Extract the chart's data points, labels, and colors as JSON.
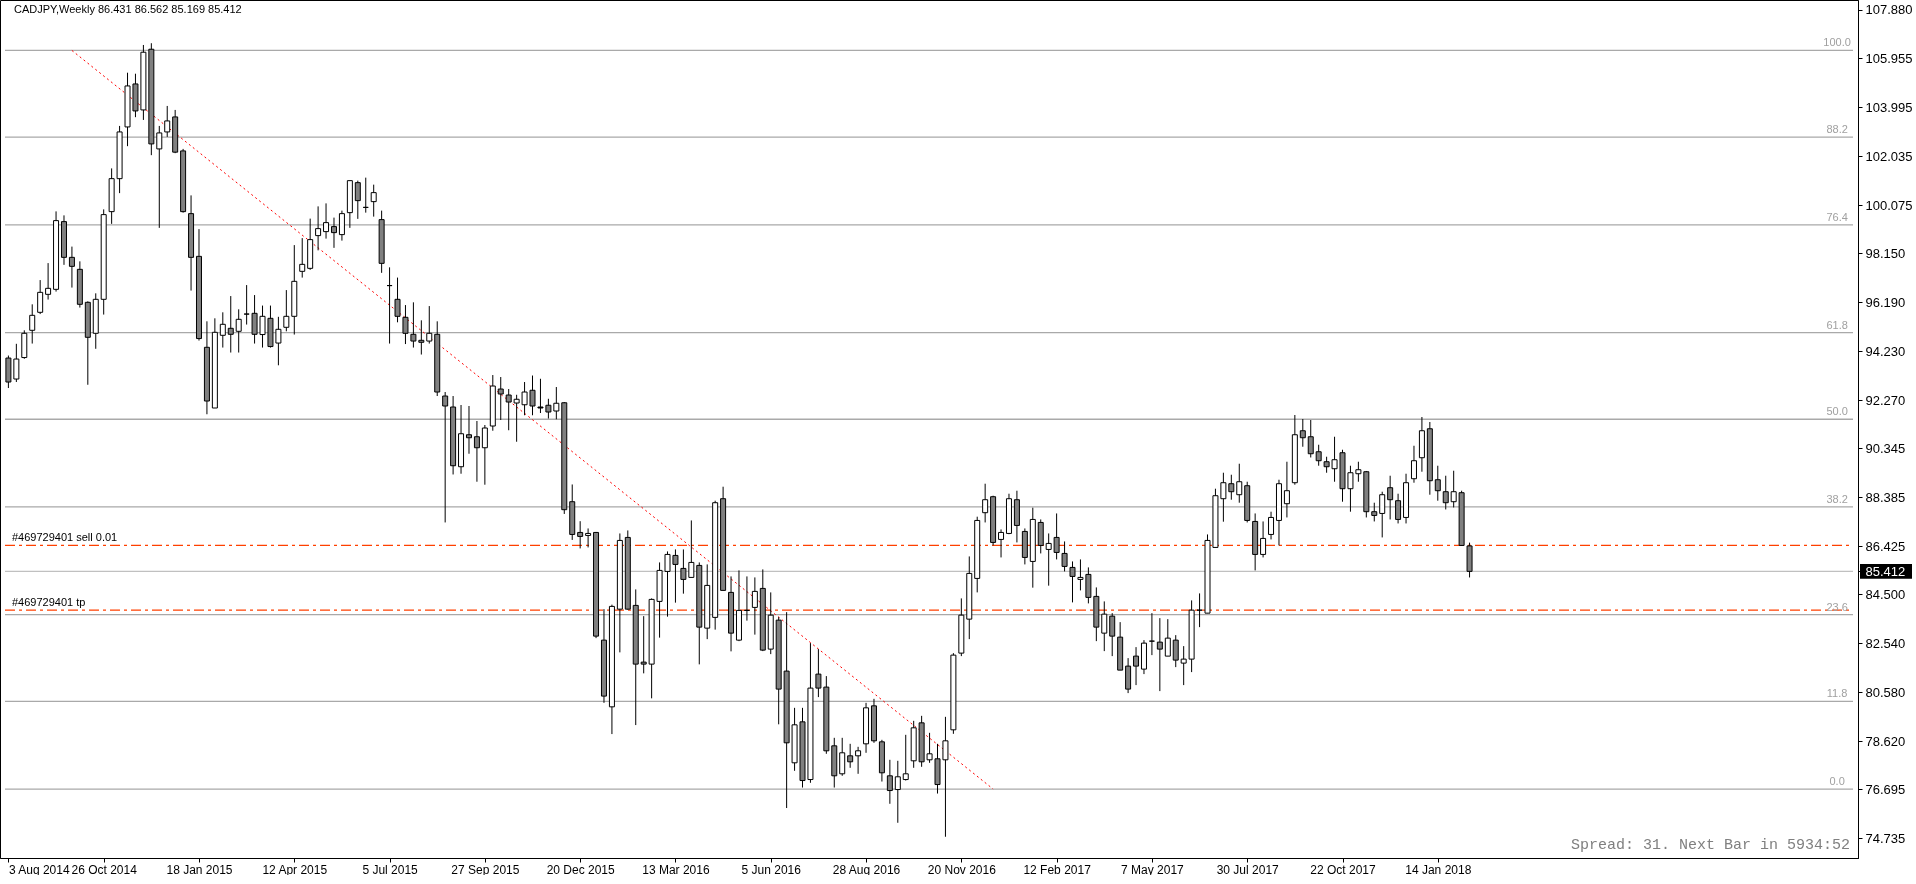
{
  "chart_data": {
    "type": "candlestick",
    "title": "CADJPY,Weekly 86.431 86.562 85.169 85.412",
    "x": [
      "2014-08-03",
      "2014-08-10",
      "2014-08-17",
      "2014-08-24",
      "2014-08-31",
      "2014-09-07",
      "2014-09-14",
      "2014-09-21",
      "2014-09-28",
      "2014-10-05",
      "2014-10-12",
      "2014-10-19",
      "2014-10-26",
      "2014-11-02",
      "2014-11-09",
      "2014-11-16",
      "2014-11-23",
      "2014-11-30",
      "2014-12-07",
      "2014-12-14",
      "2014-12-21",
      "2014-12-28",
      "2015-01-04",
      "2015-01-11",
      "2015-01-18",
      "2015-01-25",
      "2015-02-01",
      "2015-02-08",
      "2015-02-15",
      "2015-02-22",
      "2015-03-01",
      "2015-03-08",
      "2015-03-15",
      "2015-03-22",
      "2015-03-29",
      "2015-04-05",
      "2015-04-12",
      "2015-04-19",
      "2015-04-26",
      "2015-05-03",
      "2015-05-10",
      "2015-05-17",
      "2015-05-24",
      "2015-05-31",
      "2015-06-07",
      "2015-06-14",
      "2015-06-21",
      "2015-06-28",
      "2015-07-05",
      "2015-07-12",
      "2015-07-19",
      "2015-07-26",
      "2015-08-02",
      "2015-08-09",
      "2015-08-16",
      "2015-08-23",
      "2015-08-30",
      "2015-09-06",
      "2015-09-13",
      "2015-09-20",
      "2015-09-27",
      "2015-10-04",
      "2015-10-11",
      "2015-10-18",
      "2015-10-25",
      "2015-11-01",
      "2015-11-08",
      "2015-11-15",
      "2015-11-22",
      "2015-11-29",
      "2015-12-06",
      "2015-12-13",
      "2015-12-20",
      "2015-12-27",
      "2016-01-03",
      "2016-01-10",
      "2016-01-17",
      "2016-01-24",
      "2016-01-31",
      "2016-02-07",
      "2016-02-14",
      "2016-02-21",
      "2016-02-28",
      "2016-03-06",
      "2016-03-13",
      "2016-03-20",
      "2016-03-27",
      "2016-04-03",
      "2016-04-10",
      "2016-04-17",
      "2016-04-24",
      "2016-05-01",
      "2016-05-08",
      "2016-05-15",
      "2016-05-22",
      "2016-05-29",
      "2016-06-05",
      "2016-06-12",
      "2016-06-19",
      "2016-06-26",
      "2016-07-03",
      "2016-07-10",
      "2016-07-17",
      "2016-07-24",
      "2016-07-31",
      "2016-08-07",
      "2016-08-14",
      "2016-08-21",
      "2016-08-28",
      "2016-09-04",
      "2016-09-11",
      "2016-09-18",
      "2016-09-25",
      "2016-10-02",
      "2016-10-09",
      "2016-10-16",
      "2016-10-23",
      "2016-10-30",
      "2016-11-06",
      "2016-11-13",
      "2016-11-20",
      "2016-11-27",
      "2016-12-04",
      "2016-12-11",
      "2016-12-18",
      "2016-12-25",
      "2017-01-01",
      "2017-01-08",
      "2017-01-15",
      "2017-01-22",
      "2017-01-29",
      "2017-02-05",
      "2017-02-12",
      "2017-02-19",
      "2017-02-26",
      "2017-03-05",
      "2017-03-12",
      "2017-03-19",
      "2017-03-26",
      "2017-04-02",
      "2017-04-09",
      "2017-04-16",
      "2017-04-23",
      "2017-04-30",
      "2017-05-07",
      "2017-05-14",
      "2017-05-21",
      "2017-05-28",
      "2017-06-04",
      "2017-06-11",
      "2017-06-18",
      "2017-06-25",
      "2017-07-02",
      "2017-07-09",
      "2017-07-16",
      "2017-07-23",
      "2017-07-30",
      "2017-08-06",
      "2017-08-13",
      "2017-08-20",
      "2017-08-27",
      "2017-09-03",
      "2017-09-10",
      "2017-09-17",
      "2017-09-24",
      "2017-10-01",
      "2017-10-08",
      "2017-10-15",
      "2017-10-22",
      "2017-10-29",
      "2017-11-05",
      "2017-11-12",
      "2017-11-19",
      "2017-11-26",
      "2017-12-03",
      "2017-12-10",
      "2017-12-17",
      "2017-12-24",
      "2017-12-31",
      "2018-01-07",
      "2018-01-14",
      "2018-01-21",
      "2018-01-28",
      "2018-02-04",
      "2018-02-11"
    ],
    "ohlc": [
      [
        93.95,
        94.05,
        92.75,
        92.99
      ],
      [
        93.11,
        94.52,
        92.99,
        93.91
      ],
      [
        93.97,
        95.06,
        93.92,
        94.94
      ],
      [
        95.06,
        96.1,
        94.53,
        95.66
      ],
      [
        95.78,
        97.07,
        95.71,
        96.58
      ],
      [
        96.5,
        97.75,
        96.29,
        96.74
      ],
      [
        96.7,
        99.82,
        96.61,
        99.45
      ],
      [
        99.41,
        99.66,
        97.68,
        97.98
      ],
      [
        97.98,
        98.41,
        96.77,
        97.62
      ],
      [
        97.5,
        97.82,
        95.97,
        96.1
      ],
      [
        96.18,
        96.22,
        92.88,
        94.78
      ],
      [
        94.94,
        96.54,
        94.32,
        96.3
      ],
      [
        96.3,
        99.9,
        95.69,
        99.69
      ],
      [
        99.81,
        101.54,
        99.32,
        101.13
      ],
      [
        101.13,
        103.24,
        100.55,
        103.0
      ],
      [
        103.2,
        105.37,
        102.43,
        104.84
      ],
      [
        104.92,
        105.33,
        103.59,
        103.84
      ],
      [
        103.88,
        106.48,
        103.48,
        106.19
      ],
      [
        106.31,
        106.55,
        102.07,
        102.52
      ],
      [
        102.32,
        103.24,
        99.16,
        102.96
      ],
      [
        103.0,
        104.04,
        102.8,
        103.44
      ],
      [
        103.6,
        103.88,
        102.15,
        102.19
      ],
      [
        102.24,
        102.32,
        99.77,
        99.81
      ],
      [
        99.73,
        100.46,
        96.65,
        97.98
      ],
      [
        98.02,
        99.11,
        94.65,
        94.73
      ],
      [
        94.38,
        95.42,
        91.7,
        92.23
      ],
      [
        91.95,
        95.54,
        91.95,
        94.98
      ],
      [
        94.86,
        95.78,
        94.37,
        95.3
      ],
      [
        95.14,
        96.43,
        94.17,
        94.9
      ],
      [
        95.02,
        95.9,
        94.17,
        95.5
      ],
      [
        95.71,
        96.87,
        95.29,
        95.71
      ],
      [
        95.74,
        96.47,
        94.53,
        94.9
      ],
      [
        94.89,
        96.05,
        94.37,
        95.62
      ],
      [
        95.54,
        96.05,
        94.37,
        94.41
      ],
      [
        94.55,
        95.6,
        93.66,
        95.1
      ],
      [
        95.18,
        96.67,
        95.02,
        95.62
      ],
      [
        95.62,
        98.47,
        94.89,
        97.02
      ],
      [
        97.42,
        98.75,
        97.17,
        97.7
      ],
      [
        97.54,
        99.53,
        97.48,
        98.69
      ],
      [
        98.85,
        100.02,
        98.26,
        99.13
      ],
      [
        99.01,
        100.14,
        98.73,
        99.37
      ],
      [
        99.21,
        99.57,
        98.36,
        98.97
      ],
      [
        98.89,
        99.85,
        98.65,
        99.73
      ],
      [
        99.77,
        101.05,
        99.16,
        101.05
      ],
      [
        100.97,
        101.05,
        99.52,
        100.25
      ],
      [
        99.98,
        101.17,
        99.77,
        99.98
      ],
      [
        100.21,
        100.89,
        99.61,
        100.57
      ],
      [
        99.49,
        99.85,
        97.36,
        97.74
      ],
      [
        96.85,
        97.58,
        94.53,
        96.85
      ],
      [
        96.3,
        97.17,
        95.38,
        95.62
      ],
      [
        95.58,
        96.07,
        94.51,
        94.94
      ],
      [
        94.9,
        96.18,
        94.37,
        94.63
      ],
      [
        94.66,
        95.46,
        94.09,
        94.58
      ],
      [
        94.63,
        96.03,
        94.53,
        94.94
      ],
      [
        94.9,
        95.42,
        92.43,
        92.59
      ],
      [
        92.43,
        92.59,
        87.37,
        92.03
      ],
      [
        91.99,
        92.43,
        89.29,
        89.64
      ],
      [
        89.6,
        92.07,
        89.32,
        90.92
      ],
      [
        90.88,
        92.03,
        90.12,
        90.76
      ],
      [
        90.8,
        91.43,
        89.0,
        90.36
      ],
      [
        90.36,
        91.27,
        88.88,
        91.15
      ],
      [
        91.23,
        93.27,
        91.04,
        92.83
      ],
      [
        92.71,
        93.19,
        91.47,
        92.51
      ],
      [
        92.47,
        92.71,
        91.06,
        92.19
      ],
      [
        92.15,
        92.48,
        90.6,
        92.3
      ],
      [
        92.08,
        92.99,
        91.66,
        92.59
      ],
      [
        92.66,
        93.25,
        91.66,
        92.03
      ],
      [
        91.99,
        93.12,
        91.75,
        91.95
      ],
      [
        92.06,
        92.32,
        91.53,
        91.79
      ],
      [
        91.83,
        92.79,
        91.5,
        92.14
      ],
      [
        92.16,
        92.19,
        87.71,
        87.88
      ],
      [
        88.2,
        88.89,
        86.67,
        86.89
      ],
      [
        86.97,
        87.42,
        86.33,
        86.81
      ],
      [
        86.85,
        87.13,
        86.37,
        86.93
      ],
      [
        86.97,
        86.99,
        82.74,
        82.82
      ],
      [
        82.66,
        83.9,
        80.15,
        80.42
      ],
      [
        79.99,
        84.08,
        78.9,
        84.01
      ],
      [
        83.9,
        86.93,
        82.17,
        86.65
      ],
      [
        86.77,
        87.05,
        83.88,
        83.9
      ],
      [
        84.05,
        84.69,
        79.26,
        81.7
      ],
      [
        81.78,
        83.62,
        81.33,
        81.7
      ],
      [
        81.7,
        84.33,
        80.33,
        84.29
      ],
      [
        84.21,
        85.77,
        82.76,
        85.45
      ],
      [
        85.41,
        86.21,
        83.6,
        86.09
      ],
      [
        86.05,
        86.29,
        84.16,
        85.69
      ],
      [
        85.53,
        86.29,
        84.52,
        85.09
      ],
      [
        85.17,
        87.45,
        85.17,
        85.77
      ],
      [
        85.65,
        85.77,
        81.69,
        83.18
      ],
      [
        83.14,
        85.69,
        82.7,
        84.85
      ],
      [
        83.57,
        88.24,
        83.08,
        88.16
      ],
      [
        88.32,
        88.8,
        84.65,
        84.65
      ],
      [
        84.57,
        85.21,
        82.21,
        82.94
      ],
      [
        82.66,
        85.45,
        82.62,
        83.85
      ],
      [
        83.85,
        85.21,
        83.44,
        83.85
      ],
      [
        83.97,
        85.17,
        82.88,
        84.61
      ],
      [
        84.73,
        85.49,
        82.22,
        82.26
      ],
      [
        82.3,
        84.57,
        82.1,
        83.66
      ],
      [
        83.46,
        83.58,
        79.29,
        80.7
      ],
      [
        81.42,
        83.78,
        75.94,
        78.55
      ],
      [
        77.75,
        79.95,
        77.43,
        79.27
      ],
      [
        79.39,
        79.95,
        76.76,
        77.04
      ],
      [
        77.08,
        82.54,
        76.95,
        80.74
      ],
      [
        81.3,
        82.3,
        80.38,
        80.74
      ],
      [
        80.78,
        81.22,
        78.11,
        78.23
      ],
      [
        78.43,
        78.75,
        76.76,
        77.23
      ],
      [
        77.31,
        78.75,
        77.23,
        78.15
      ],
      [
        78.03,
        78.51,
        77.55,
        77.79
      ],
      [
        78.03,
        78.39,
        77.31,
        78.23
      ],
      [
        78.51,
        80.15,
        78.15,
        79.95
      ],
      [
        80.03,
        80.31,
        78.55,
        78.63
      ],
      [
        78.59,
        78.67,
        77.0,
        77.35
      ],
      [
        77.23,
        77.87,
        76.11,
        76.64
      ],
      [
        76.68,
        77.83,
        75.35,
        77.19
      ],
      [
        77.08,
        78.87,
        77.04,
        77.31
      ],
      [
        77.83,
        79.43,
        77.55,
        79.15
      ],
      [
        79.35,
        79.63,
        77.59,
        77.79
      ],
      [
        77.87,
        78.95,
        77.75,
        78.11
      ],
      [
        77.91,
        78.51,
        76.52,
        76.88
      ],
      [
        77.87,
        79.59,
        74.79,
        78.63
      ],
      [
        79.07,
        82.14,
        78.91,
        82.06
      ],
      [
        82.14,
        84.33,
        82.02,
        83.66
      ],
      [
        83.5,
        86.01,
        82.7,
        85.33
      ],
      [
        85.13,
        87.6,
        84.57,
        87.45
      ],
      [
        87.76,
        88.92,
        87.37,
        88.28
      ],
      [
        88.4,
        88.44,
        86.45,
        86.57
      ],
      [
        86.69,
        87.09,
        85.97,
        86.97
      ],
      [
        86.93,
        88.52,
        86.9,
        88.32
      ],
      [
        88.28,
        88.64,
        86.57,
        87.25
      ],
      [
        87.01,
        87.13,
        85.69,
        85.97
      ],
      [
        85.81,
        87.96,
        84.76,
        87.49
      ],
      [
        87.37,
        87.49,
        86.13,
        86.45
      ],
      [
        86.29,
        86.93,
        84.84,
        86.53
      ],
      [
        86.77,
        87.73,
        85.89,
        86.17
      ],
      [
        86.13,
        86.61,
        85.41,
        85.61
      ],
      [
        85.57,
        85.81,
        84.17,
        85.21
      ],
      [
        85.09,
        85.89,
        84.65,
        85.17
      ],
      [
        85.29,
        85.57,
        84.13,
        84.37
      ],
      [
        84.41,
        84.77,
        82.62,
        83.18
      ],
      [
        82.94,
        84.21,
        82.22,
        83.7
      ],
      [
        83.62,
        83.74,
        82.02,
        82.82
      ],
      [
        82.78,
        83.38,
        81.46,
        81.46
      ],
      [
        81.62,
        81.94,
        80.54,
        80.7
      ],
      [
        82.02,
        82.38,
        80.86,
        81.62
      ],
      [
        81.5,
        82.66,
        81.3,
        82.54
      ],
      [
        82.62,
        83.74,
        82.06,
        82.62
      ],
      [
        82.58,
        83.54,
        80.62,
        82.3
      ],
      [
        82.02,
        83.5,
        82.02,
        82.74
      ],
      [
        82.66,
        82.86,
        81.58,
        81.86
      ],
      [
        81.74,
        82.42,
        80.86,
        81.9
      ],
      [
        81.9,
        84.25,
        81.38,
        83.86
      ],
      [
        83.86,
        84.53,
        83.18,
        83.86
      ],
      [
        83.74,
        86.89,
        83.74,
        86.65
      ],
      [
        86.37,
        88.72,
        86.37,
        88.44
      ],
      [
        88.32,
        89.36,
        87.4,
        88.96
      ],
      [
        88.92,
        89.28,
        88.28,
        88.6
      ],
      [
        88.48,
        89.72,
        88.16,
        89.0
      ],
      [
        88.84,
        89.0,
        87.37,
        87.45
      ],
      [
        87.41,
        87.73,
        85.45,
        86.09
      ],
      [
        86.09,
        87.41,
        85.97,
        86.73
      ],
      [
        86.89,
        87.8,
        86.69,
        87.57
      ],
      [
        87.45,
        89.08,
        86.45,
        88.92
      ],
      [
        88.12,
        89.8,
        87.57,
        88.64
      ],
      [
        88.96,
        91.67,
        88.88,
        90.88
      ],
      [
        91.04,
        91.51,
        90.4,
        90.76
      ],
      [
        90.8,
        91.47,
        89.97,
        90.12
      ],
      [
        90.2,
        90.48,
        89.64,
        89.84
      ],
      [
        89.8,
        90.0,
        89.36,
        89.6
      ],
      [
        89.52,
        90.8,
        89.0,
        89.88
      ],
      [
        90.16,
        90.28,
        88.2,
        88.72
      ],
      [
        88.72,
        89.64,
        87.8,
        89.36
      ],
      [
        89.32,
        89.8,
        89.0,
        89.48
      ],
      [
        89.4,
        89.43,
        87.57,
        87.8
      ],
      [
        87.8,
        88.16,
        87.41,
        87.65
      ],
      [
        87.73,
        88.6,
        86.77,
        88.48
      ],
      [
        88.76,
        89.24,
        87.49,
        88.28
      ],
      [
        88.24,
        88.52,
        87.33,
        87.49
      ],
      [
        87.57,
        89.32,
        87.33,
        88.96
      ],
      [
        89.12,
        90.44,
        88.96,
        89.84
      ],
      [
        89.96,
        91.59,
        89.4,
        91.04
      ],
      [
        91.12,
        91.39,
        88.48,
        89.04
      ],
      [
        89.08,
        89.64,
        88.24,
        88.64
      ],
      [
        88.6,
        89.24,
        87.89,
        88.16
      ],
      [
        88.2,
        89.44,
        87.97,
        88.6
      ],
      [
        88.56,
        88.64,
        86.43,
        86.45
      ],
      [
        86.431,
        86.562,
        85.169,
        85.412
      ]
    ],
    "colors": [
      "#808080",
      "#ffffff",
      "#ffffff",
      "#ffffff",
      "#ffffff",
      "#ffffff",
      "#ffffff",
      "#808080",
      "#808080",
      "#808080",
      "#808080",
      "#ffffff",
      "#ffffff",
      "#ffffff",
      "#ffffff",
      "#ffffff",
      "#808080",
      "#ffffff",
      "#808080",
      "#ffffff",
      "#ffffff",
      "#808080",
      "#808080",
      "#808080",
      "#808080",
      "#808080",
      "#ffffff",
      "#ffffff",
      "#808080",
      "#ffffff",
      "#000000",
      "#808080",
      "#ffffff",
      "#808080",
      "#ffffff",
      "#ffffff",
      "#ffffff",
      "#ffffff",
      "#ffffff",
      "#ffffff",
      "#ffffff",
      "#808080",
      "#ffffff",
      "#ffffff",
      "#808080",
      "#000000",
      "#ffffff",
      "#808080",
      "#000000",
      "#808080",
      "#808080",
      "#808080",
      "#808080",
      "#ffffff",
      "#808080",
      "#808080",
      "#808080",
      "#ffffff",
      "#808080",
      "#808080",
      "#ffffff",
      "#ffffff",
      "#808080",
      "#808080",
      "#ffffff",
      "#ffffff",
      "#808080",
      "#000000",
      "#808080",
      "#ffffff",
      "#808080",
      "#808080",
      "#808080",
      "#ffffff",
      "#808080",
      "#808080",
      "#ffffff",
      "#ffffff",
      "#808080",
      "#808080",
      "#808080",
      "#ffffff",
      "#ffffff",
      "#ffffff",
      "#808080",
      "#808080",
      "#ffffff",
      "#808080",
      "#ffffff",
      "#ffffff",
      "#808080",
      "#808080",
      "#ffffff",
      "#000000",
      "#ffffff",
      "#808080",
      "#ffffff",
      "#808080",
      "#808080",
      "#ffffff",
      "#808080",
      "#ffffff",
      "#808080",
      "#808080",
      "#808080",
      "#ffffff",
      "#808080",
      "#ffffff",
      "#ffffff",
      "#808080",
      "#808080",
      "#808080",
      "#ffffff",
      "#ffffff",
      "#ffffff",
      "#808080",
      "#ffffff",
      "#808080",
      "#ffffff",
      "#ffffff",
      "#ffffff",
      "#ffffff",
      "#ffffff",
      "#ffffff",
      "#808080",
      "#ffffff",
      "#ffffff",
      "#808080",
      "#808080",
      "#ffffff",
      "#808080",
      "#ffffff",
      "#808080",
      "#808080",
      "#808080",
      "#ffffff",
      "#808080",
      "#808080",
      "#ffffff",
      "#808080",
      "#808080",
      "#808080",
      "#808080",
      "#ffffff",
      "#000000",
      "#808080",
      "#ffffff",
      "#808080",
      "#ffffff",
      "#ffffff",
      "#000000",
      "#ffffff",
      "#ffffff",
      "#ffffff",
      "#808080",
      "#ffffff",
      "#808080",
      "#808080",
      "#ffffff",
      "#ffffff",
      "#ffffff",
      "#ffffff",
      "#ffffff",
      "#808080",
      "#808080",
      "#808080",
      "#808080",
      "#ffffff",
      "#808080",
      "#ffffff",
      "#ffffff",
      "#808080",
      "#808080",
      "#ffffff",
      "#808080",
      "#808080",
      "#ffffff",
      "#ffffff",
      "#ffffff",
      "#808080",
      "#808080",
      "#808080",
      "#ffffff",
      "#808080",
      "#808080"
    ],
    "xlim": [
      "2014-07-31",
      "2019-01-15"
    ],
    "xticks": [
      {
        "value": "2014-08-03",
        "label": "3 Aug 2014"
      },
      {
        "value": "2014-10-26",
        "label": "26 Oct 2014"
      },
      {
        "value": "2015-01-18",
        "label": "18 Jan 2015"
      },
      {
        "value": "2015-04-12",
        "label": "12 Apr 2015"
      },
      {
        "value": "2015-07-05",
        "label": "5 Jul 2015"
      },
      {
        "value": "2015-09-27",
        "label": "27 Sep 2015"
      },
      {
        "value": "2015-12-20",
        "label": "20 Dec 2015"
      },
      {
        "value": "2016-03-13",
        "label": "13 Mar 2016"
      },
      {
        "value": "2016-06-05",
        "label": "5 Jun 2016"
      },
      {
        "value": "2016-08-28",
        "label": "28 Aug 2016"
      },
      {
        "value": "2016-11-20",
        "label": "20 Nov 2016"
      },
      {
        "value": "2017-02-12",
        "label": "12 Feb 2017"
      },
      {
        "value": "2017-05-07",
        "label": "7 May 2017"
      },
      {
        "value": "2017-07-30",
        "label": "30 Jul 2017"
      },
      {
        "value": "2017-10-22",
        "label": "22 Oct 2017"
      },
      {
        "value": "2018-01-14",
        "label": "14 Jan 2018"
      }
    ],
    "ylim": [
      73.94,
      108.28
    ],
    "yticks": [
      74.735,
      76.695,
      {
        "value": 78.62,
        "label": "78.620"
      },
      {
        "value": 80.58,
        "label": "80.580"
      },
      {
        "value": 82.54,
        "label": "82.540"
      },
      {
        "value": 84.5,
        "label": "84.500"
      },
      {
        "value": 85.412,
        "label": "85.412"
      },
      86.425,
      88.385,
      90.345,
      {
        "value": 92.27,
        "label": "92.270"
      },
      {
        "value": 94.23,
        "label": "94.230"
      },
      {
        "value": 96.19,
        "label": "96.190"
      },
      {
        "value": 98.15,
        "label": "98.150"
      },
      100.075,
      102.035,
      103.995,
      105.955,
      {
        "value": 107.88,
        "label": "107.880"
      }
    ],
    "series": [
      {
        "type": "line",
        "x": [
          "2014-09-28",
          "2016-12-18"
        ],
        "values": [
          106.26,
          76.7
        ],
        "color": "#ff0000",
        "line_style": "dotted"
      }
    ],
    "ref_lines": [
      {
        "axis": "y",
        "value": 106.26,
        "color": "#a9a9a9",
        "line_style": "solid"
      },
      {
        "axis": "y",
        "value": 102.79,
        "color": "#a9a9a9",
        "line_style": "solid"
      },
      {
        "axis": "y",
        "value": 99.28,
        "color": "#a9a9a9",
        "line_style": "solid"
      },
      {
        "axis": "y",
        "value": 94.97,
        "color": "#a9a9a9",
        "line_style": "solid"
      },
      {
        "axis": "y",
        "value": 91.5,
        "color": "#a9a9a9",
        "line_style": "solid"
      },
      {
        "axis": "y",
        "value": 87.99,
        "color": "#a9a9a9",
        "line_style": "solid"
      },
      {
        "axis": "y",
        "value": 83.68,
        "color": "#a9a9a9",
        "line_style": "solid"
      },
      {
        "axis": "y",
        "value": 80.21,
        "color": "#a9a9a9",
        "line_style": "solid"
      },
      {
        "axis": "y",
        "value": 76.7,
        "color": "#a9a9a9",
        "line_style": "solid"
      },
      {
        "axis": "y",
        "value": 85.412,
        "color": "#c0c0c0",
        "line_style": "solid"
      },
      {
        "axis": "y",
        "value": 86.45,
        "label": "#469729401 sell 0.01",
        "color": "#ff4000",
        "line_style": "dashed"
      },
      {
        "axis": "y",
        "value": 83.86,
        "label": "#469729401 tp",
        "color": "#ff4000",
        "line_style": "dashed"
      }
    ],
    "annotations": [
      {
        "text": "100.0",
        "x": "2019-01-01",
        "y": 106.26
      },
      {
        "text": "88.2",
        "x": "2019-01-01",
        "y": 102.79
      },
      {
        "text": "76.4",
        "x": "2019-01-01",
        "y": 99.28
      },
      {
        "text": "61.8",
        "x": "2019-01-01",
        "y": 94.97
      },
      {
        "text": "50.0",
        "x": "2019-01-01",
        "y": 91.5
      },
      {
        "text": "38.2",
        "x": "2019-01-01",
        "y": 87.99
      },
      {
        "text": "23.6",
        "x": "2019-01-01",
        "y": 83.68
      },
      {
        "text": "11.8",
        "x": "2019-01-01",
        "y": 80.21
      },
      {
        "text": "0.0",
        "x": "2019-01-01",
        "y": 76.7
      },
      "Spread: 31. Next Bar in 5934:52"
    ],
    "grid": false
  }
}
